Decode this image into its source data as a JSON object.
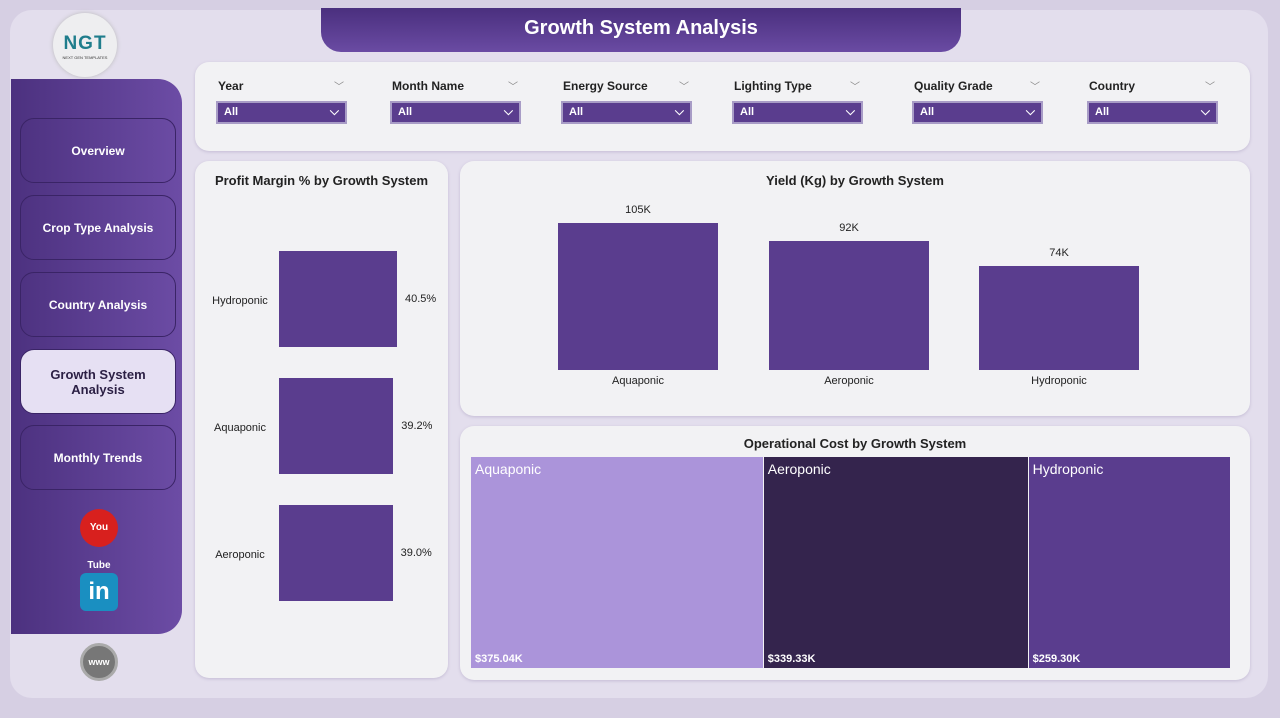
{
  "title": "Growth System Analysis",
  "logo": {
    "text": "NGT",
    "subtitle": "NEXT GEN TEMPLATES"
  },
  "nav": [
    {
      "label": "Overview"
    },
    {
      "label": "Crop Type Analysis"
    },
    {
      "label": "Country Analysis"
    },
    {
      "label": "Growth System Analysis",
      "active": true
    },
    {
      "label": "Monthly Trends"
    }
  ],
  "social": {
    "youtube": "You Tube",
    "linkedin": "in",
    "web": "www"
  },
  "filters": [
    {
      "label": "Year",
      "value": "All"
    },
    {
      "label": "Month Name",
      "value": "All"
    },
    {
      "label": "Energy Source",
      "value": "All"
    },
    {
      "label": "Lighting Type",
      "value": "All"
    },
    {
      "label": "Quality Grade",
      "value": "All"
    },
    {
      "label": "Country",
      "value": "All"
    }
  ],
  "colors": {
    "accent": "#5a3d8e",
    "light": "#ab94da",
    "dark": "#34244d"
  },
  "chart_data": [
    {
      "type": "bar",
      "orientation": "horizontal",
      "title": "Profit Margin % by Growth System",
      "categories": [
        "Hydroponic",
        "Aquaponic",
        "Aeroponic"
      ],
      "values": [
        40.5,
        39.2,
        39.0
      ],
      "labels": [
        "40.5%",
        "39.2%",
        "39.0%"
      ]
    },
    {
      "type": "bar",
      "title": "Yield (Kg) by Growth System",
      "categories": [
        "Aquaponic",
        "Aeroponic",
        "Hydroponic"
      ],
      "values": [
        105000,
        92000,
        74000
      ],
      "labels": [
        "105K",
        "92K",
        "74K"
      ]
    },
    {
      "type": "treemap",
      "title": "Operational Cost by Growth System",
      "categories": [
        "Aquaponic",
        "Aeroponic",
        "Hydroponic"
      ],
      "values": [
        375040,
        339330,
        259300
      ],
      "labels": [
        "$375.04K",
        "$339.33K",
        "$259.30K"
      ],
      "colors": [
        "#ab94da",
        "#34244d",
        "#5a3d8e"
      ]
    }
  ]
}
